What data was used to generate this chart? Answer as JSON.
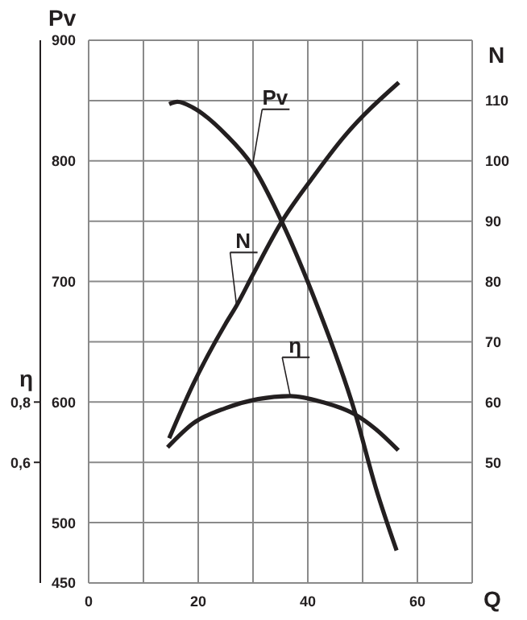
{
  "chart_data": {
    "type": "line",
    "xlabel": "Q",
    "ylabel": "Pv",
    "y2label": "N",
    "y3label": "η",
    "xlim": [
      0,
      70
    ],
    "xticks": [
      0,
      {
        "value": 10,
        "label": null
      },
      20,
      {
        "value": 30,
        "label": null
      },
      40,
      {
        "value": 50,
        "label": null
      },
      60,
      {
        "value": 70,
        "label": null
      }
    ],
    "ylim": [
      450,
      900
    ],
    "yticks": [
      450,
      500,
      {
        "value": 550,
        "label": null
      },
      600,
      {
        "value": 650,
        "label": null
      },
      700,
      {
        "value": 750,
        "label": null
      },
      800,
      {
        "value": 850,
        "label": null
      },
      900
    ],
    "y2lim": [
      30,
      120
    ],
    "y2ticks": [
      50,
      60,
      70,
      80,
      90,
      100,
      110
    ],
    "y3lim": [
      0.2,
      2.0
    ],
    "y3ticks": [
      {
        "value": 0.6,
        "label": "0,6"
      },
      {
        "value": 0.8,
        "label": "0,8"
      }
    ],
    "grid": true,
    "legend": false,
    "marker": "none",
    "line_style": "solid",
    "series": [
      {
        "name": "Pv",
        "color": "#231f20",
        "x": [
          14.7,
          16.2,
          19.1,
          25,
          29.9,
          35.3,
          41.7,
          48.5,
          52.4,
          56.2
        ],
        "values": [
          847,
          849,
          844,
          822,
          796,
          749,
          680,
          593,
          529,
          477
        ]
      },
      {
        "name": "N",
        "color": "#231f20",
        "axis": "y2",
        "x": [
          14.7,
          19.1,
          25,
          27,
          29.9,
          35.3,
          40.7,
          46.6,
          56.6
        ],
        "values": [
          54,
          63,
          73,
          76,
          81,
          90,
          97,
          104,
          113
        ]
      },
      {
        "name": "η",
        "color": "#231f20",
        "axis": "y3",
        "x": [
          14.4,
          19.1,
          25,
          30.9,
          36.8,
          42.6,
          48.5,
          52.4,
          56.5
        ],
        "values": [
          0.65,
          0.73,
          0.78,
          0.81,
          0.82,
          0.8,
          0.76,
          0.71,
          0.64
        ]
      }
    ]
  }
}
